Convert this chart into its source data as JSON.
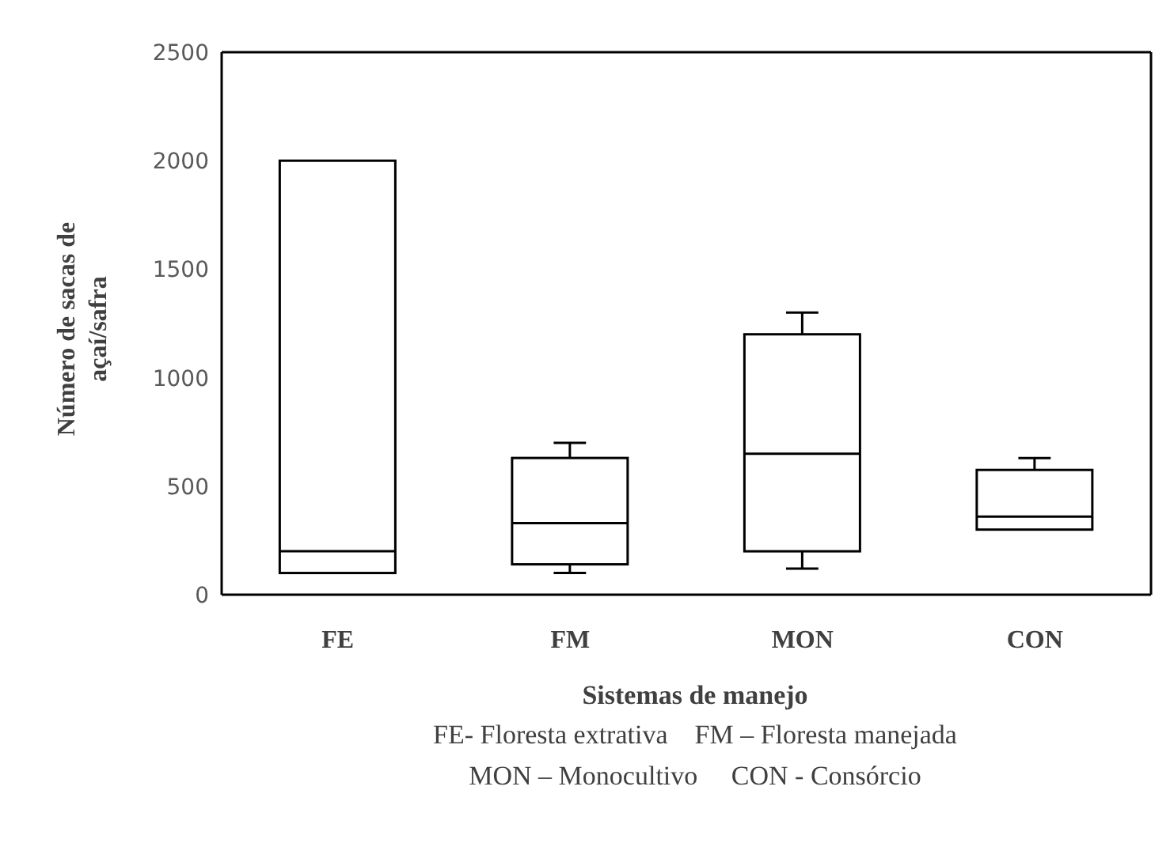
{
  "chart_data": {
    "type": "box",
    "categories": [
      "FE",
      "FM",
      "MON",
      "CON"
    ],
    "boxes": [
      {
        "low": 100,
        "q1": 100,
        "median": 200,
        "q3": 2000,
        "high": 2000
      },
      {
        "low": 100,
        "q1": 140,
        "median": 330,
        "q3": 630,
        "high": 700
      },
      {
        "low": 120,
        "q1": 200,
        "median": 650,
        "q3": 1200,
        "high": 1300
      },
      {
        "low": 300,
        "q1": 300,
        "median": 360,
        "q3": 575,
        "high": 630
      }
    ],
    "ylim": [
      0,
      2500
    ],
    "yticks": [
      0,
      500,
      1000,
      1500,
      2000,
      2500
    ],
    "xlabel": "Sistemas de manejo",
    "ylabel": "Número de sacas de açaí/safra",
    "annotations": [
      "FE- Floresta extrativa    FM – Floresta manejada",
      "MON – Monocultivo     CON - Consórcio"
    ]
  }
}
